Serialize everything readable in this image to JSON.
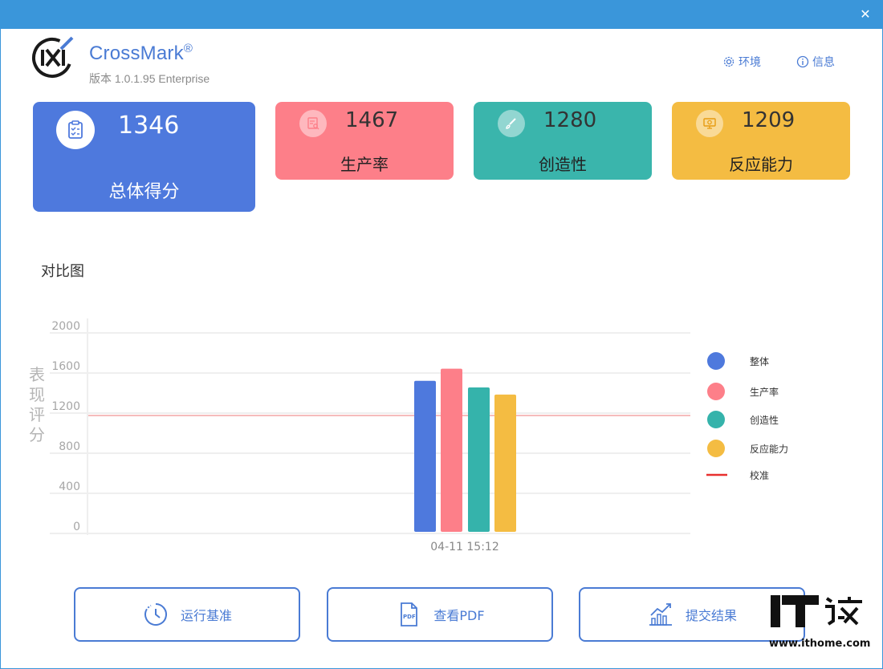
{
  "window": {
    "close_symbol": "✕"
  },
  "header": {
    "app_name": "CrossMark",
    "registered_mark": "®",
    "version": "版本 1.0.1.95 Enterprise",
    "env_label": "环境",
    "info_label": "信息",
    "icons": {
      "env": "gear-icon",
      "info": "info-icon"
    }
  },
  "scores": {
    "overall": {
      "value": "1346",
      "label": "总体得分",
      "icon": "clipboard-check-icon",
      "color": "#4e79dd"
    },
    "productivity": {
      "value": "1467",
      "label": "生产率",
      "icon": "document-search-icon",
      "color": "#fd7f89"
    },
    "creativity": {
      "value": "1280",
      "label": "创造性",
      "icon": "brush-icon",
      "color": "#3ab5ac"
    },
    "responsiveness": {
      "value": "1209",
      "label": "反应能力",
      "icon": "presentation-board-icon",
      "color": "#f4bc42"
    }
  },
  "comparison": {
    "title": "对比图"
  },
  "chart_data": {
    "type": "bar",
    "title": "",
    "ylabel": "表现评分",
    "xlabel": "",
    "ylim": [
      0,
      2000
    ],
    "yticks": [
      0,
      400,
      800,
      1200,
      1600,
      2000
    ],
    "categories": [
      "04-11 15:12"
    ],
    "series": [
      {
        "name": "整体",
        "values": [
          1346
        ],
        "color": "#4e79dd"
      },
      {
        "name": "生产率",
        "values": [
          1467
        ],
        "color": "#fd7f89"
      },
      {
        "name": "创造性",
        "values": [
          1280
        ],
        "color": "#35b3ab"
      },
      {
        "name": "反应能力",
        "values": [
          1209
        ],
        "color": "#f4bc42"
      }
    ],
    "reference_line": {
      "name": "校准",
      "value": 1000,
      "color": "#f08080"
    },
    "grid": true,
    "legend_position": "right"
  },
  "actions": {
    "run_label": "运行基准",
    "pdf_label": "查看PDF",
    "submit_label": "提交结果",
    "icons": {
      "run": "clock-icon",
      "pdf": "pdf-file-icon",
      "submit": "growth-chart-icon"
    }
  },
  "watermark": {
    "text": "www.ithome.com"
  }
}
